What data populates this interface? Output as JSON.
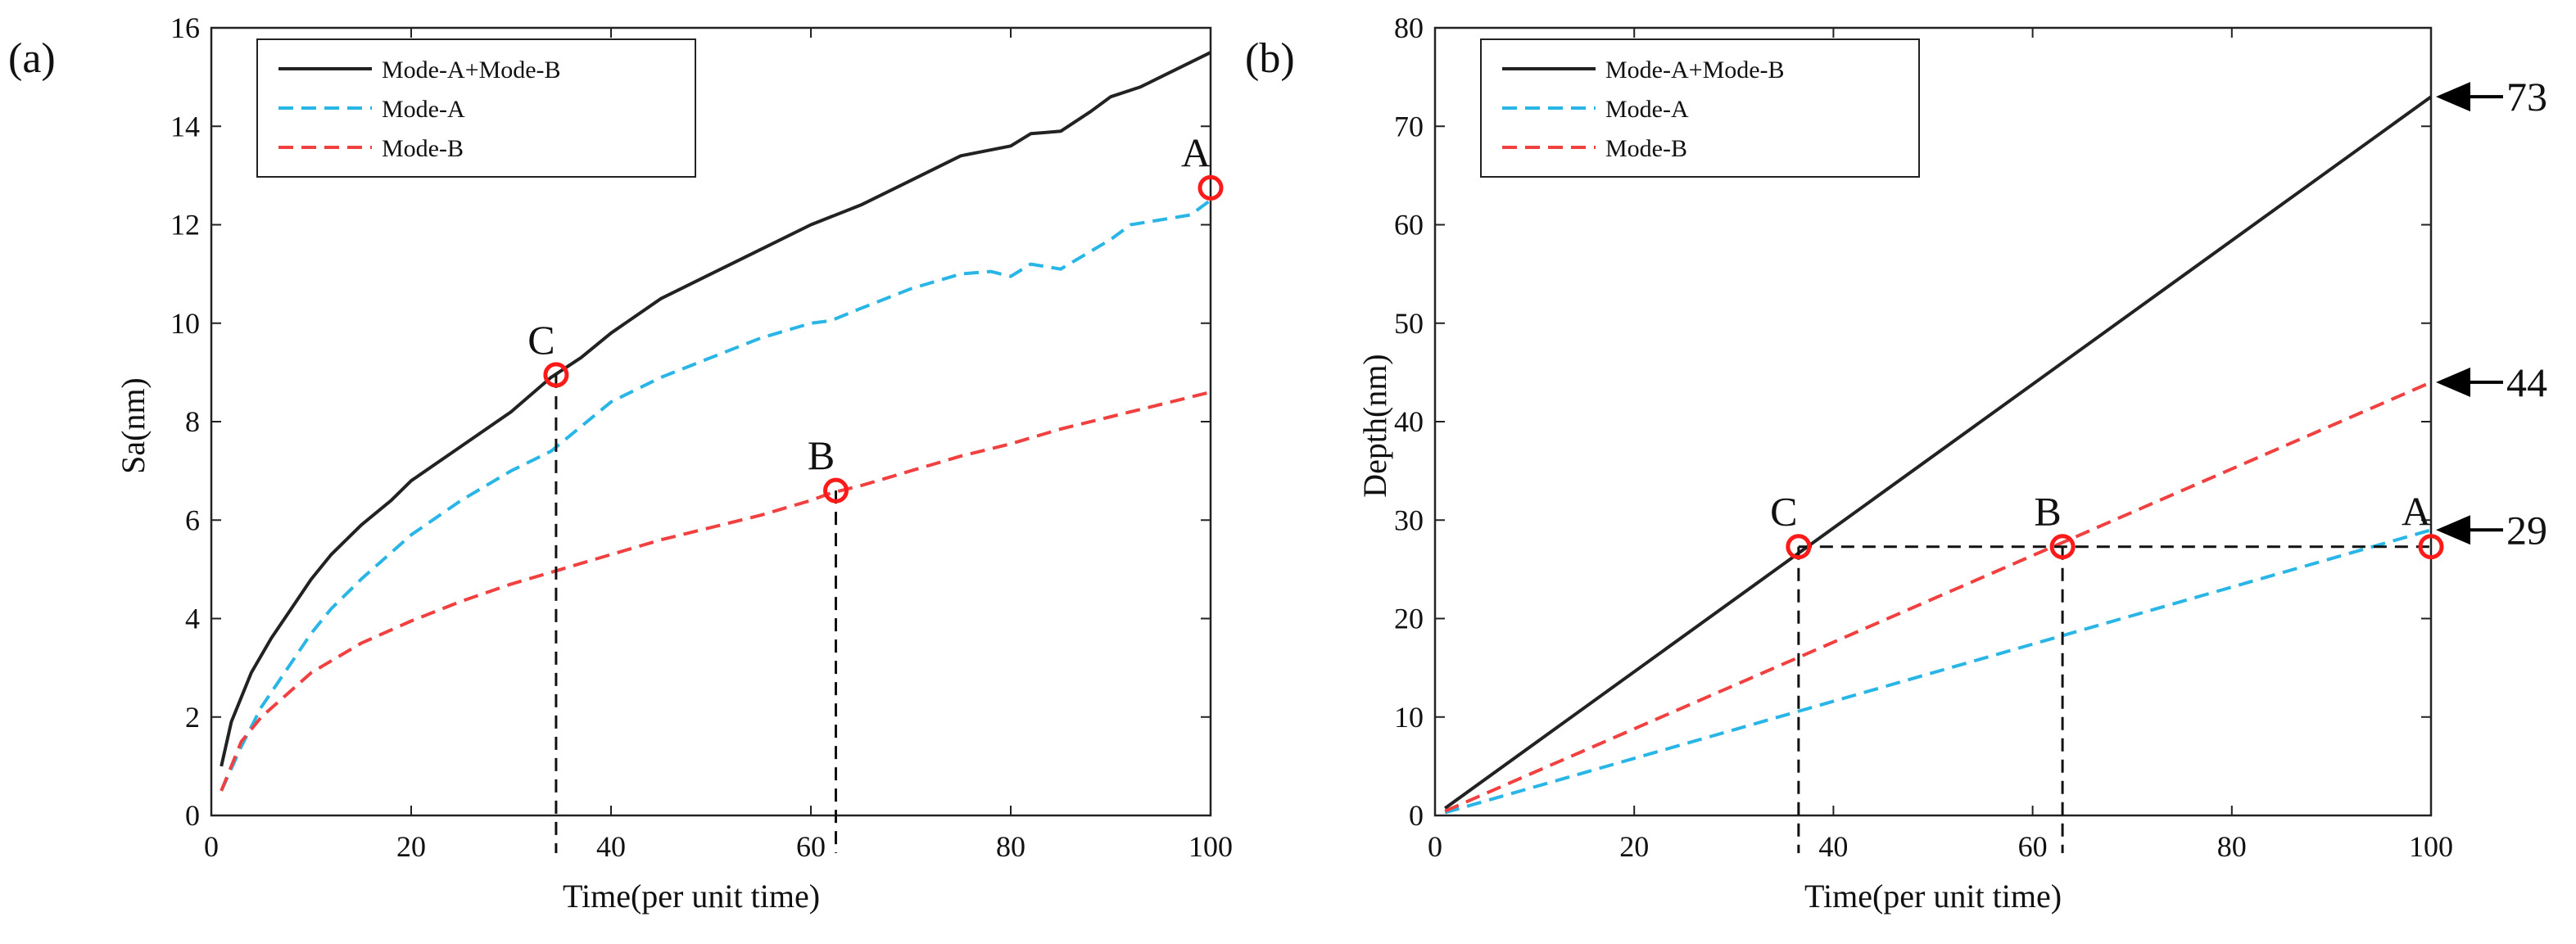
{
  "chart_data": [
    {
      "type": "line",
      "panel_label": "(a)",
      "title": "",
      "xlabel": "Time(per unit time)",
      "ylabel": "Sa(nm)",
      "xlim": [
        0,
        100
      ],
      "ylim": [
        0,
        16
      ],
      "xticks": [
        0,
        20,
        40,
        60,
        80,
        100
      ],
      "yticks": [
        0,
        2,
        4,
        6,
        8,
        10,
        12,
        14,
        16
      ],
      "grid": false,
      "legend_position": "top-left",
      "series": [
        {
          "name": "Mode-A+Mode-B",
          "color": "#222222",
          "style": "solid",
          "x": [
            1,
            2,
            4,
            6,
            8,
            10,
            12,
            15,
            18,
            20,
            25,
            30,
            34,
            37,
            40,
            45,
            50,
            55,
            60,
            65,
            70,
            75,
            80,
            82,
            85,
            88,
            90,
            93,
            95,
            97,
            100
          ],
          "y": [
            1.0,
            1.9,
            2.9,
            3.6,
            4.2,
            4.8,
            5.3,
            5.9,
            6.4,
            6.8,
            7.5,
            8.2,
            8.9,
            9.3,
            9.8,
            10.5,
            11.0,
            11.5,
            12.0,
            12.4,
            12.9,
            13.4,
            13.6,
            13.85,
            13.9,
            14.3,
            14.6,
            14.8,
            15.0,
            15.2,
            15.5
          ]
        },
        {
          "name": "Mode-A",
          "color": "#29b6e6",
          "style": "dashed",
          "x": [
            1,
            3,
            5,
            8,
            10,
            12,
            15,
            20,
            25,
            30,
            34,
            37,
            40,
            45,
            50,
            55,
            60,
            62,
            65,
            70,
            75,
            78,
            80,
            82,
            85,
            90,
            92,
            95,
            98,
            100
          ],
          "y": [
            0.5,
            1.4,
            2.2,
            3.1,
            3.7,
            4.2,
            4.8,
            5.7,
            6.4,
            7.0,
            7.4,
            7.9,
            8.4,
            8.9,
            9.3,
            9.7,
            10.0,
            10.05,
            10.3,
            10.7,
            11.0,
            11.05,
            10.95,
            11.2,
            11.1,
            11.7,
            12.0,
            12.1,
            12.2,
            12.5
          ]
        },
        {
          "name": "Mode-B",
          "color": "#f04040",
          "style": "dashed",
          "x": [
            1,
            3,
            5,
            10,
            15,
            20,
            25,
            30,
            35,
            40,
            45,
            50,
            55,
            60,
            62,
            65,
            70,
            75,
            80,
            85,
            90,
            95,
            100
          ],
          "y": [
            0.5,
            1.5,
            2.0,
            2.9,
            3.5,
            3.95,
            4.35,
            4.7,
            5.0,
            5.3,
            5.6,
            5.85,
            6.1,
            6.4,
            6.55,
            6.7,
            7.0,
            7.3,
            7.55,
            7.85,
            8.1,
            8.35,
            8.6
          ]
        }
      ],
      "markers": [
        {
          "label": "A",
          "x": 100,
          "y": 12.75
        },
        {
          "label": "B",
          "x": 62.5,
          "y": 6.6
        },
        {
          "label": "C",
          "x": 34.5,
          "y": 8.95
        }
      ],
      "guides": [
        {
          "x": 34.5,
          "y_top": 8.95
        },
        {
          "x": 62.5,
          "y_top": 6.6
        }
      ]
    },
    {
      "type": "line",
      "panel_label": "(b)",
      "title": "",
      "xlabel": "Time(per unit time)",
      "ylabel": "Depth(nm)",
      "xlim": [
        0,
        100
      ],
      "ylim": [
        0,
        80
      ],
      "xticks": [
        0,
        20,
        40,
        60,
        80,
        100
      ],
      "yticks": [
        0,
        10,
        20,
        30,
        40,
        50,
        60,
        70,
        80
      ],
      "grid": false,
      "legend_position": "top-left",
      "series": [
        {
          "name": "Mode-A+Mode-B",
          "color": "#222222",
          "style": "solid",
          "x": [
            1,
            100
          ],
          "y": [
            0.73,
            73
          ]
        },
        {
          "name": "Mode-A",
          "color": "#29b6e6",
          "style": "dashed",
          "x": [
            1,
            100
          ],
          "y": [
            0.29,
            29
          ]
        },
        {
          "name": "Mode-B",
          "color": "#f04040",
          "style": "dashed",
          "x": [
            1,
            100
          ],
          "y": [
            0.44,
            44
          ]
        }
      ],
      "markers": [
        {
          "label": "A",
          "x": 100,
          "y": 27.3
        },
        {
          "label": "B",
          "x": 63,
          "y": 27.3
        },
        {
          "label": "C",
          "x": 36.5,
          "y": 27.3
        }
      ],
      "guides": [
        {
          "x": 36.5,
          "y_top": 27.3
        },
        {
          "x": 63,
          "y_top": 27.3
        }
      ],
      "hguide": {
        "y": 27.3,
        "x_from": 36.5,
        "x_to": 100
      },
      "end_values": [
        {
          "value": 73,
          "label": "73"
        },
        {
          "value": 44,
          "label": "44"
        },
        {
          "value": 29,
          "label": "29"
        }
      ]
    }
  ]
}
